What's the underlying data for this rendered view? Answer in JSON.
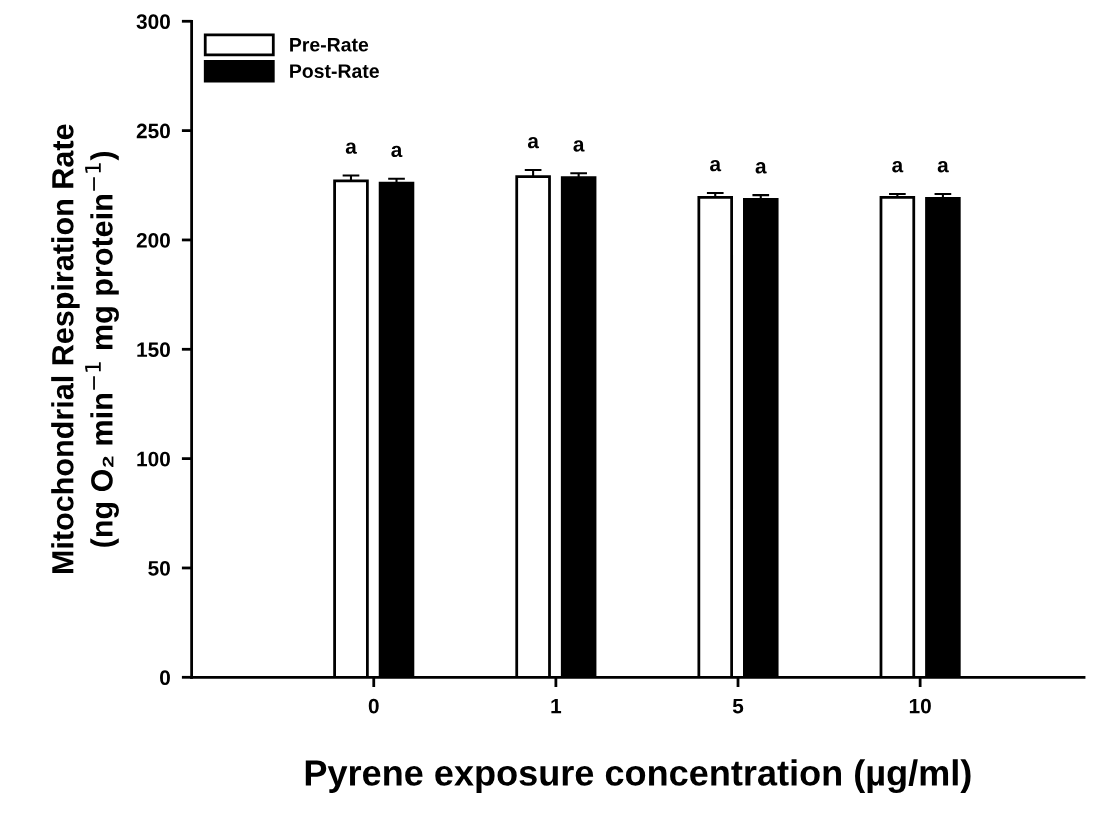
{
  "chart_data": {
    "type": "bar",
    "xlabel": "Pyrene exposure concentration (µg/ml)",
    "ylabel": "Mitochondrial Respiration Rate\n(ng O₂ min$^{−1}$ mg protein$^{−1}$)",
    "categories": [
      "0",
      "1",
      "5",
      "10"
    ],
    "series": [
      {
        "name": "Pre-Rate",
        "color": "#ffffff",
        "values": [
          227,
          229,
          219.5,
          219.5
        ],
        "errors": [
          2.5,
          3,
          2,
          1.5
        ],
        "value_labels": [
          "a",
          "a",
          "a",
          "a"
        ]
      },
      {
        "name": "Post-Rate",
        "color": "#000000",
        "values": [
          226,
          228.5,
          218.5,
          219
        ],
        "errors": [
          2,
          2,
          2,
          2
        ],
        "value_labels": [
          "a",
          "a",
          "a",
          "a"
        ]
      }
    ],
    "ylim": [
      0,
      300
    ],
    "yticks": [
      0,
      50,
      100,
      150,
      200,
      250,
      300
    ],
    "grid": false,
    "legend": "top left"
  }
}
